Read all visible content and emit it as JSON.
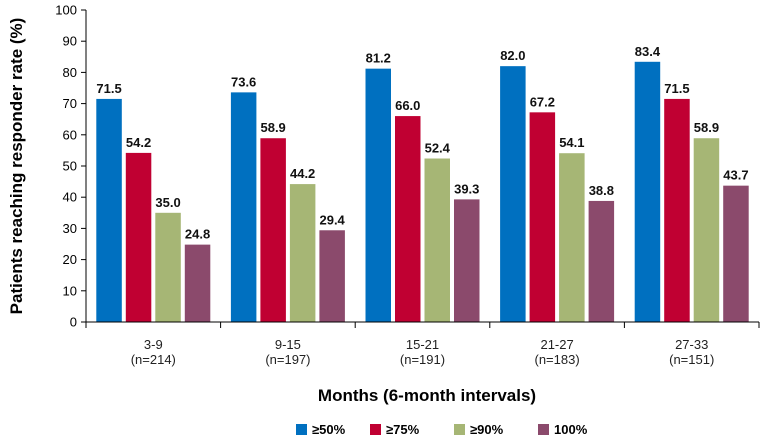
{
  "chart_data": {
    "type": "bar",
    "xlabel": "Months (6-month intervals)",
    "ylabel": "Patients reaching responder rate (%)",
    "ylim": [
      0,
      100
    ],
    "yticks": [
      0,
      10,
      20,
      30,
      40,
      50,
      60,
      70,
      80,
      90,
      100
    ],
    "categories": [
      {
        "label": "3-9",
        "sub": "(n=214)"
      },
      {
        "label": "9-15",
        "sub": "(n=197)"
      },
      {
        "label": "15-21",
        "sub": "(n=191)"
      },
      {
        "label": "21-27",
        "sub": "(n=183)"
      },
      {
        "label": "27-33",
        "sub": "(n=151)"
      }
    ],
    "series": [
      {
        "name": "≥50%",
        "color": "#0070C0",
        "values": [
          71.5,
          73.6,
          81.2,
          82.0,
          83.4
        ],
        "labels": [
          "71.5",
          "73.6",
          "81.2",
          "82.0",
          "83.4"
        ]
      },
      {
        "name": "≥75%",
        "color": "#C00032",
        "values": [
          54.2,
          58.9,
          66.0,
          67.2,
          71.5
        ],
        "labels": [
          "54.2",
          "58.9",
          "66.0",
          "67.2",
          "71.5"
        ]
      },
      {
        "name": "≥90%",
        "color": "#A6B675",
        "values": [
          35.0,
          44.2,
          52.4,
          54.1,
          58.9
        ],
        "labels": [
          "35.0",
          "44.2",
          "52.4",
          "54.1",
          "58.9"
        ]
      },
      {
        "name": "100%",
        "color": "#8B4A6C",
        "values": [
          24.8,
          29.4,
          39.3,
          38.8,
          43.7
        ],
        "labels": [
          "24.8",
          "29.4",
          "39.3",
          "38.8",
          "43.7"
        ]
      }
    ],
    "legend_position": "bottom",
    "grid": false
  }
}
